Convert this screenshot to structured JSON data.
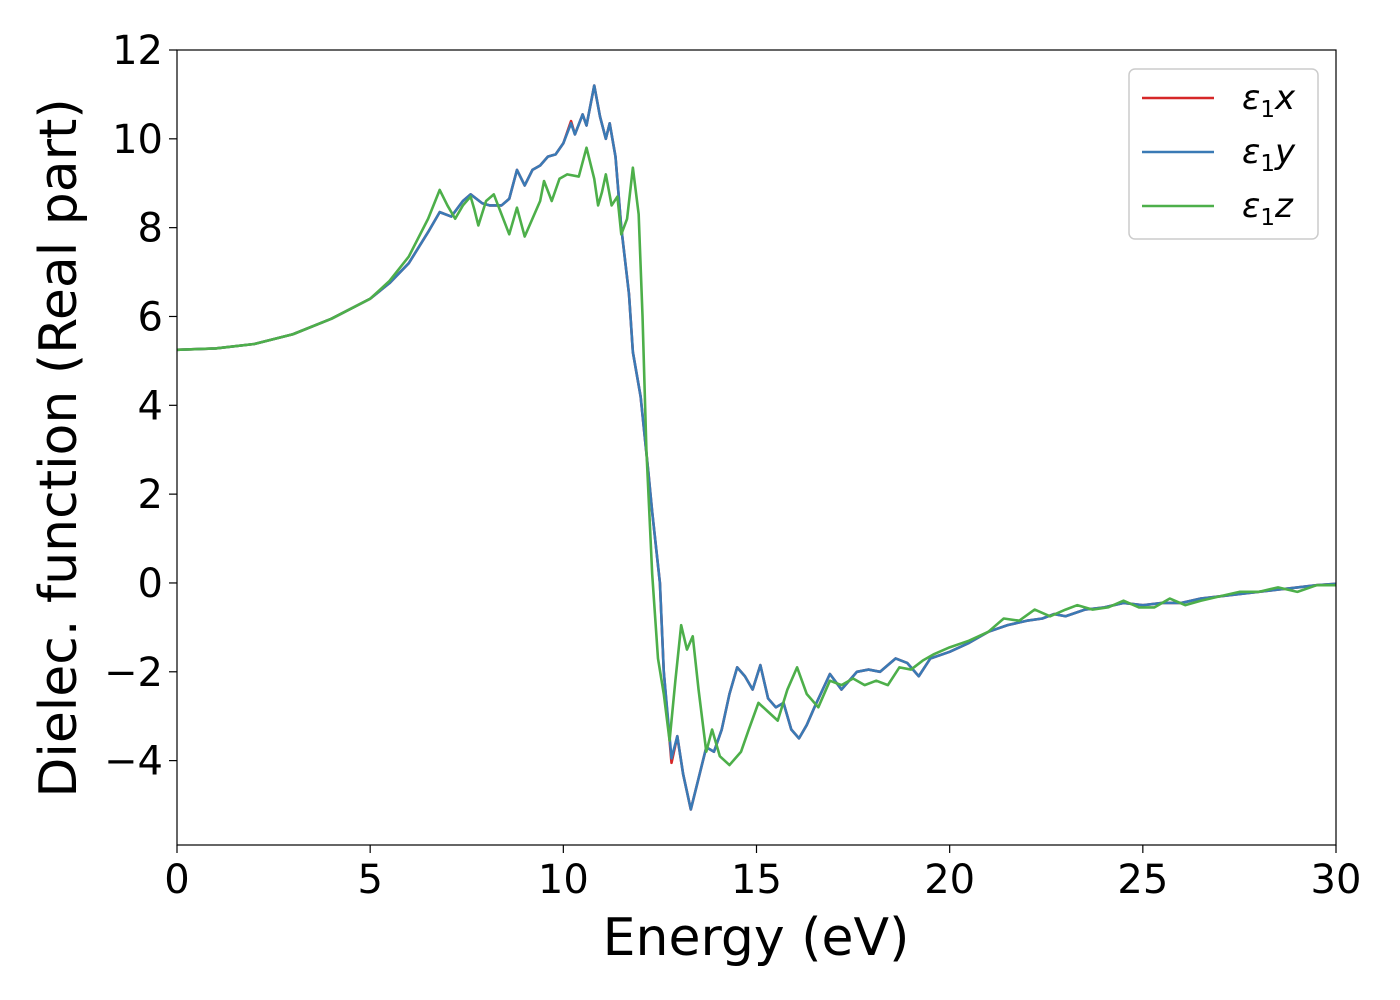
{
  "chart_data": {
    "type": "line",
    "title": "",
    "xlabel": "Energy (eV)",
    "ylabel": "Dielec. function (Real part)",
    "xlim": [
      0,
      30
    ],
    "ylim": [
      -5.9,
      12.0
    ],
    "xticks": [
      0,
      5,
      10,
      15,
      20,
      25,
      30
    ],
    "yticks": [
      -4,
      -2,
      0,
      2,
      4,
      6,
      8,
      10,
      12
    ],
    "xtick_labels": [
      "0",
      "5",
      "10",
      "15",
      "20",
      "25",
      "30"
    ],
    "ytick_labels": [
      "−4",
      "−2",
      "0",
      "2",
      "4",
      "6",
      "8",
      "10",
      "12"
    ],
    "grid": false,
    "legend_position": "top-right",
    "series": [
      {
        "name": "ε₁x",
        "symbol": "ε",
        "subscript": "1",
        "suffix": "x",
        "color": "#d62728",
        "points": [
          [
            0,
            5.25
          ],
          [
            1,
            5.28
          ],
          [
            2,
            5.38
          ],
          [
            3,
            5.6
          ],
          [
            4,
            5.95
          ],
          [
            5,
            6.4
          ],
          [
            5.5,
            6.75
          ],
          [
            6,
            7.2
          ],
          [
            6.5,
            7.9
          ],
          [
            6.8,
            8.35
          ],
          [
            7.1,
            8.25
          ],
          [
            7.4,
            8.6
          ],
          [
            7.6,
            8.75
          ],
          [
            7.9,
            8.55
          ],
          [
            8.1,
            8.5
          ],
          [
            8.4,
            8.5
          ],
          [
            8.6,
            8.65
          ],
          [
            8.8,
            9.3
          ],
          [
            9.0,
            8.95
          ],
          [
            9.2,
            9.3
          ],
          [
            9.4,
            9.4
          ],
          [
            9.6,
            9.6
          ],
          [
            9.8,
            9.65
          ],
          [
            10.0,
            9.9
          ],
          [
            10.2,
            10.4
          ],
          [
            10.3,
            10.1
          ],
          [
            10.5,
            10.55
          ],
          [
            10.6,
            10.3
          ],
          [
            10.8,
            11.2
          ],
          [
            10.95,
            10.5
          ],
          [
            11.1,
            10.0
          ],
          [
            11.2,
            10.35
          ],
          [
            11.35,
            9.6
          ],
          [
            11.5,
            8.0
          ],
          [
            11.7,
            6.5
          ],
          [
            11.8,
            5.2
          ],
          [
            12.0,
            4.2
          ],
          [
            12.2,
            2.5
          ],
          [
            12.3,
            1.6
          ],
          [
            12.5,
            0.0
          ],
          [
            12.6,
            -2.0
          ],
          [
            12.8,
            -4.05
          ],
          [
            12.95,
            -3.45
          ],
          [
            13.1,
            -4.3
          ],
          [
            13.3,
            -5.1
          ],
          [
            13.5,
            -4.4
          ],
          [
            13.7,
            -3.7
          ],
          [
            13.9,
            -3.8
          ],
          [
            14.1,
            -3.3
          ],
          [
            14.3,
            -2.5
          ],
          [
            14.5,
            -1.9
          ],
          [
            14.7,
            -2.1
          ],
          [
            14.9,
            -2.4
          ],
          [
            15.1,
            -1.85
          ],
          [
            15.3,
            -2.6
          ],
          [
            15.5,
            -2.8
          ],
          [
            15.7,
            -2.7
          ],
          [
            15.9,
            -3.3
          ],
          [
            16.1,
            -3.5
          ],
          [
            16.3,
            -3.2
          ],
          [
            16.5,
            -2.8
          ],
          [
            16.9,
            -2.05
          ],
          [
            17.2,
            -2.4
          ],
          [
            17.6,
            -2.0
          ],
          [
            17.9,
            -1.95
          ],
          [
            18.2,
            -2.0
          ],
          [
            18.6,
            -1.7
          ],
          [
            18.9,
            -1.8
          ],
          [
            19.2,
            -2.1
          ],
          [
            19.5,
            -1.7
          ],
          [
            20.0,
            -1.55
          ],
          [
            20.5,
            -1.35
          ],
          [
            21.0,
            -1.1
          ],
          [
            21.5,
            -0.95
          ],
          [
            22.0,
            -0.85
          ],
          [
            22.4,
            -0.8
          ],
          [
            22.7,
            -0.7
          ],
          [
            23.0,
            -0.75
          ],
          [
            23.5,
            -0.6
          ],
          [
            24.0,
            -0.55
          ],
          [
            24.5,
            -0.45
          ],
          [
            25.0,
            -0.5
          ],
          [
            25.5,
            -0.45
          ],
          [
            26.0,
            -0.45
          ],
          [
            26.5,
            -0.35
          ],
          [
            27.0,
            -0.3
          ],
          [
            27.5,
            -0.25
          ],
          [
            28.0,
            -0.2
          ],
          [
            28.5,
            -0.15
          ],
          [
            29.0,
            -0.1
          ],
          [
            29.5,
            -0.05
          ],
          [
            30.0,
            -0.02
          ]
        ]
      },
      {
        "name": "ε₁y",
        "symbol": "ε",
        "subscript": "1",
        "suffix": "y",
        "color": "#3a7ab5",
        "points": [
          [
            0,
            5.25
          ],
          [
            1,
            5.28
          ],
          [
            2,
            5.38
          ],
          [
            3,
            5.6
          ],
          [
            4,
            5.95
          ],
          [
            5,
            6.4
          ],
          [
            5.5,
            6.75
          ],
          [
            6,
            7.2
          ],
          [
            6.5,
            7.9
          ],
          [
            6.8,
            8.35
          ],
          [
            7.1,
            8.25
          ],
          [
            7.4,
            8.6
          ],
          [
            7.6,
            8.75
          ],
          [
            7.9,
            8.55
          ],
          [
            8.1,
            8.5
          ],
          [
            8.4,
            8.5
          ],
          [
            8.6,
            8.65
          ],
          [
            8.8,
            9.3
          ],
          [
            9.0,
            8.95
          ],
          [
            9.2,
            9.3
          ],
          [
            9.4,
            9.4
          ],
          [
            9.6,
            9.6
          ],
          [
            9.8,
            9.65
          ],
          [
            10.0,
            9.9
          ],
          [
            10.2,
            10.35
          ],
          [
            10.3,
            10.1
          ],
          [
            10.5,
            10.55
          ],
          [
            10.6,
            10.3
          ],
          [
            10.8,
            11.2
          ],
          [
            10.95,
            10.5
          ],
          [
            11.1,
            10.0
          ],
          [
            11.2,
            10.35
          ],
          [
            11.35,
            9.6
          ],
          [
            11.5,
            8.0
          ],
          [
            11.7,
            6.5
          ],
          [
            11.8,
            5.2
          ],
          [
            12.0,
            4.2
          ],
          [
            12.2,
            2.5
          ],
          [
            12.3,
            1.6
          ],
          [
            12.5,
            0.0
          ],
          [
            12.6,
            -2.0
          ],
          [
            12.8,
            -3.95
          ],
          [
            12.95,
            -3.45
          ],
          [
            13.1,
            -4.3
          ],
          [
            13.3,
            -5.1
          ],
          [
            13.5,
            -4.4
          ],
          [
            13.7,
            -3.7
          ],
          [
            13.9,
            -3.8
          ],
          [
            14.1,
            -3.3
          ],
          [
            14.3,
            -2.5
          ],
          [
            14.5,
            -1.9
          ],
          [
            14.7,
            -2.1
          ],
          [
            14.9,
            -2.4
          ],
          [
            15.1,
            -1.85
          ],
          [
            15.3,
            -2.6
          ],
          [
            15.5,
            -2.8
          ],
          [
            15.7,
            -2.7
          ],
          [
            15.9,
            -3.3
          ],
          [
            16.1,
            -3.5
          ],
          [
            16.3,
            -3.2
          ],
          [
            16.5,
            -2.8
          ],
          [
            16.9,
            -2.05
          ],
          [
            17.2,
            -2.4
          ],
          [
            17.6,
            -2.0
          ],
          [
            17.9,
            -1.95
          ],
          [
            18.2,
            -2.0
          ],
          [
            18.6,
            -1.7
          ],
          [
            18.9,
            -1.8
          ],
          [
            19.2,
            -2.1
          ],
          [
            19.5,
            -1.7
          ],
          [
            20.0,
            -1.55
          ],
          [
            20.5,
            -1.35
          ],
          [
            21.0,
            -1.1
          ],
          [
            21.5,
            -0.95
          ],
          [
            22.0,
            -0.85
          ],
          [
            22.4,
            -0.8
          ],
          [
            22.7,
            -0.7
          ],
          [
            23.0,
            -0.75
          ],
          [
            23.5,
            -0.6
          ],
          [
            24.0,
            -0.55
          ],
          [
            24.5,
            -0.45
          ],
          [
            25.0,
            -0.5
          ],
          [
            25.5,
            -0.45
          ],
          [
            26.0,
            -0.45
          ],
          [
            26.5,
            -0.35
          ],
          [
            27.0,
            -0.3
          ],
          [
            27.5,
            -0.25
          ],
          [
            28.0,
            -0.2
          ],
          [
            28.5,
            -0.15
          ],
          [
            29.0,
            -0.1
          ],
          [
            29.5,
            -0.05
          ],
          [
            30.0,
            -0.02
          ]
        ]
      },
      {
        "name": "ε₁z",
        "symbol": "ε",
        "subscript": "1",
        "suffix": "z",
        "color": "#4daf4a",
        "points": [
          [
            0,
            5.25
          ],
          [
            1,
            5.28
          ],
          [
            2,
            5.38
          ],
          [
            3,
            5.6
          ],
          [
            4,
            5.95
          ],
          [
            5,
            6.4
          ],
          [
            5.5,
            6.8
          ],
          [
            6,
            7.35
          ],
          [
            6.5,
            8.2
          ],
          [
            6.8,
            8.85
          ],
          [
            7.0,
            8.5
          ],
          [
            7.2,
            8.2
          ],
          [
            7.4,
            8.5
          ],
          [
            7.6,
            8.7
          ],
          [
            7.7,
            8.4
          ],
          [
            7.8,
            8.05
          ],
          [
            8.0,
            8.6
          ],
          [
            8.2,
            8.75
          ],
          [
            8.4,
            8.3
          ],
          [
            8.6,
            7.85
          ],
          [
            8.8,
            8.45
          ],
          [
            9.0,
            7.8
          ],
          [
            9.2,
            8.2
          ],
          [
            9.4,
            8.6
          ],
          [
            9.5,
            9.05
          ],
          [
            9.7,
            8.6
          ],
          [
            9.9,
            9.1
          ],
          [
            10.1,
            9.2
          ],
          [
            10.4,
            9.15
          ],
          [
            10.6,
            9.8
          ],
          [
            10.8,
            9.1
          ],
          [
            10.9,
            8.5
          ],
          [
            11.0,
            8.8
          ],
          [
            11.1,
            9.2
          ],
          [
            11.25,
            8.5
          ],
          [
            11.4,
            8.7
          ],
          [
            11.5,
            7.85
          ],
          [
            11.65,
            8.2
          ],
          [
            11.8,
            9.35
          ],
          [
            11.95,
            8.3
          ],
          [
            12.05,
            6.0
          ],
          [
            12.15,
            3.0
          ],
          [
            12.3,
            0.2
          ],
          [
            12.45,
            -1.7
          ],
          [
            12.6,
            -2.5
          ],
          [
            12.75,
            -3.55
          ],
          [
            12.9,
            -2.2
          ],
          [
            13.05,
            -0.95
          ],
          [
            13.2,
            -1.5
          ],
          [
            13.35,
            -1.2
          ],
          [
            13.5,
            -2.4
          ],
          [
            13.7,
            -3.8
          ],
          [
            13.85,
            -3.3
          ],
          [
            14.05,
            -3.9
          ],
          [
            14.3,
            -4.1
          ],
          [
            14.6,
            -3.8
          ],
          [
            14.8,
            -3.3
          ],
          [
            15.05,
            -2.7
          ],
          [
            15.3,
            -2.9
          ],
          [
            15.55,
            -3.1
          ],
          [
            15.8,
            -2.4
          ],
          [
            16.05,
            -1.9
          ],
          [
            16.3,
            -2.5
          ],
          [
            16.6,
            -2.8
          ],
          [
            16.9,
            -2.2
          ],
          [
            17.2,
            -2.3
          ],
          [
            17.5,
            -2.15
          ],
          [
            17.8,
            -2.3
          ],
          [
            18.1,
            -2.2
          ],
          [
            18.4,
            -2.3
          ],
          [
            18.7,
            -1.9
          ],
          [
            19.0,
            -1.95
          ],
          [
            19.3,
            -1.75
          ],
          [
            19.6,
            -1.6
          ],
          [
            20.0,
            -1.45
          ],
          [
            20.5,
            -1.3
          ],
          [
            21.0,
            -1.1
          ],
          [
            21.4,
            -0.8
          ],
          [
            21.8,
            -0.85
          ],
          [
            22.2,
            -0.6
          ],
          [
            22.6,
            -0.75
          ],
          [
            23.0,
            -0.6
          ],
          [
            23.3,
            -0.5
          ],
          [
            23.7,
            -0.6
          ],
          [
            24.1,
            -0.55
          ],
          [
            24.5,
            -0.4
          ],
          [
            24.9,
            -0.55
          ],
          [
            25.3,
            -0.55
          ],
          [
            25.7,
            -0.35
          ],
          [
            26.1,
            -0.5
          ],
          [
            26.5,
            -0.4
          ],
          [
            27.0,
            -0.3
          ],
          [
            27.5,
            -0.2
          ],
          [
            28.0,
            -0.2
          ],
          [
            28.5,
            -0.1
          ],
          [
            29.0,
            -0.2
          ],
          [
            29.5,
            -0.05
          ],
          [
            30.0,
            -0.05
          ]
        ]
      }
    ]
  }
}
